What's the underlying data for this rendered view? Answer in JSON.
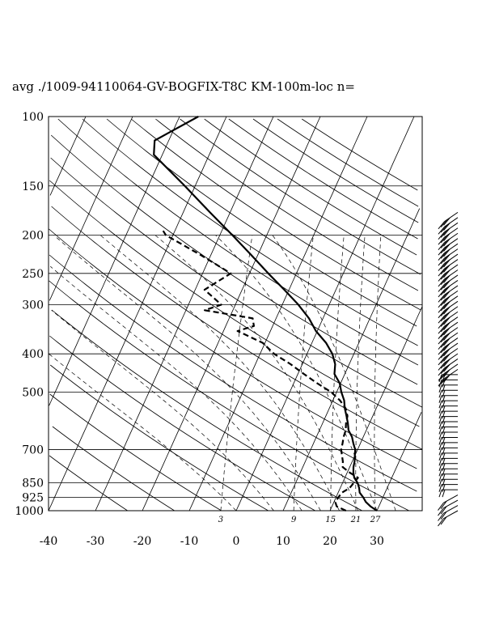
{
  "page": {
    "title": "avg ./1009-94110064-GV-BOGFIX-T8C KM-100m-loc n="
  },
  "chart_data": {
    "type": "skew-t",
    "title": "avg ./1009-94110064-GV-BOGFIX-T8C KM-100m-loc n=",
    "y_axis": {
      "scale": "log",
      "range": [
        1000,
        100
      ],
      "ticks": [
        100,
        150,
        200,
        250,
        300,
        400,
        500,
        700,
        850,
        925,
        1000
      ],
      "tick_labels": [
        "100",
        "150",
        "200",
        "250",
        "300",
        "400",
        "500",
        "700",
        "850",
        "925",
        "1000"
      ]
    },
    "x_axis": {
      "range": [
        -40,
        40
      ],
      "ticks": [
        -40,
        -30,
        -20,
        -10,
        0,
        10,
        20,
        30
      ],
      "tick_labels": [
        "-40",
        "-30",
        "-20",
        "-10",
        "0",
        "10",
        "20",
        "30"
      ]
    },
    "mixing_ratio_labels": [
      "3",
      "9",
      "15",
      "21",
      "27"
    ],
    "mixing_ratio_values": [
      3,
      9,
      15,
      21,
      27
    ],
    "series": [
      {
        "kind": "temperature",
        "style": "solid",
        "points": [
          [
            1000,
            30.0
          ],
          [
            975,
            28.2
          ],
          [
            950,
            26.8
          ],
          [
            925,
            25.8
          ],
          [
            900,
            24.6
          ],
          [
            875,
            24.0
          ],
          [
            850,
            23.2
          ],
          [
            825,
            22.0
          ],
          [
            800,
            21.3
          ],
          [
            775,
            20.8
          ],
          [
            750,
            20.5
          ],
          [
            725,
            20.0
          ],
          [
            700,
            19.5
          ],
          [
            675,
            18.5
          ],
          [
            650,
            17.6
          ],
          [
            625,
            16.2
          ],
          [
            600,
            15.4
          ],
          [
            575,
            14.4
          ],
          [
            550,
            13.3
          ],
          [
            525,
            12.4
          ],
          [
            500,
            11.0
          ],
          [
            475,
            9.8
          ],
          [
            450,
            7.8
          ],
          [
            425,
            7.0
          ],
          [
            400,
            5.4
          ],
          [
            375,
            3.0
          ],
          [
            350,
            -0.3
          ],
          [
            325,
            -3.0
          ],
          [
            300,
            -6.6
          ],
          [
            275,
            -11.0
          ],
          [
            250,
            -16.0
          ],
          [
            225,
            -21.3
          ],
          [
            200,
            -27.3
          ],
          [
            175,
            -34.3
          ],
          [
            150,
            -42.2
          ],
          [
            125,
            -51.8
          ],
          [
            115,
            -53.0
          ],
          [
            110,
            -50.8
          ],
          [
            100,
            -46.0
          ]
        ]
      },
      {
        "kind": "dewpoint",
        "style": "dashed",
        "points": [
          [
            1000,
            23.4
          ],
          [
            975,
            21.0
          ],
          [
            950,
            20.3
          ],
          [
            925,
            20.5
          ],
          [
            900,
            20.8
          ],
          [
            875,
            22.0
          ],
          [
            850,
            22.4
          ],
          [
            825,
            22.8
          ],
          [
            800,
            20.5
          ],
          [
            775,
            18.5
          ],
          [
            750,
            18.0
          ],
          [
            700,
            16.5
          ],
          [
            675,
            16.2
          ],
          [
            650,
            15.8
          ],
          [
            625,
            15.6
          ],
          [
            600,
            15.0
          ],
          [
            575,
            14.6
          ],
          [
            550,
            13.5
          ],
          [
            525,
            11.5
          ],
          [
            500,
            8.8
          ],
          [
            475,
            5.0
          ],
          [
            450,
            1.3
          ],
          [
            425,
            -2.5
          ],
          [
            400,
            -7.0
          ],
          [
            375,
            -10.5
          ],
          [
            350,
            -17.0
          ],
          [
            340,
            -14.0
          ],
          [
            325,
            -15.0
          ],
          [
            310,
            -26.0
          ],
          [
            300,
            -23.0
          ],
          [
            275,
            -28.0
          ],
          [
            250,
            -24.0
          ],
          [
            225,
            -32.0
          ],
          [
            200,
            -41.5
          ],
          [
            195,
            -42.5
          ]
        ]
      }
    ],
    "wind_barbs": {
      "count": 58,
      "pressure_range": [
        1000,
        175
      ]
    }
  }
}
